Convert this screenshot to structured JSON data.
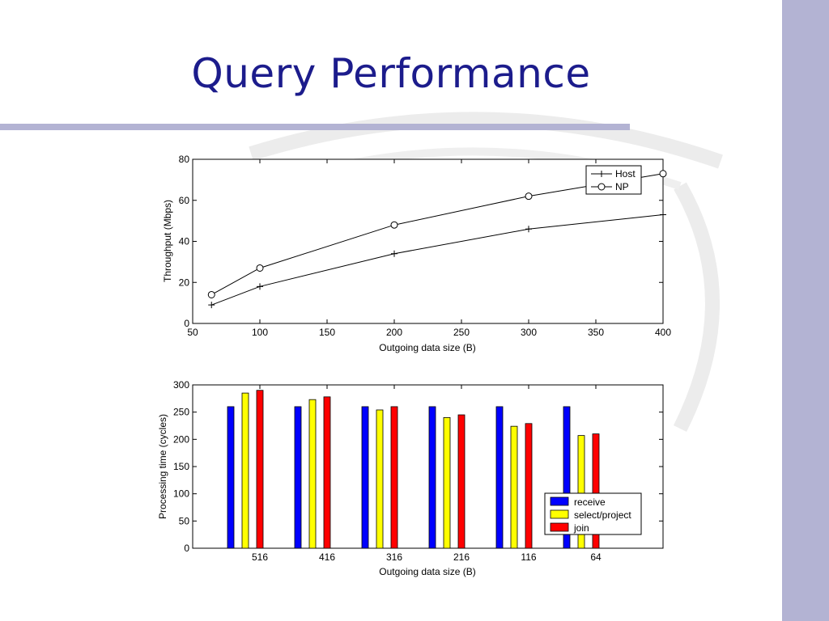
{
  "slide": {
    "title": "Query Performance",
    "accent_color": "#1c1c8c",
    "band_color": "#b3b3d3"
  },
  "chart_data": [
    {
      "type": "line",
      "xlabel": "Outgoing data size (B)",
      "ylabel": "Throughput (Mbps)",
      "xlim": [
        50,
        400
      ],
      "ylim": [
        0,
        80
      ],
      "xticks": [
        50,
        100,
        150,
        200,
        250,
        300,
        350,
        400
      ],
      "yticks": [
        0,
        20,
        40,
        60,
        80
      ],
      "grid": false,
      "legend_position": "top-right",
      "series": [
        {
          "name": "Host",
          "marker": "plus",
          "x": [
            64,
            100,
            200,
            300,
            400
          ],
          "y": [
            9,
            18,
            34,
            46,
            53
          ]
        },
        {
          "name": "NP",
          "marker": "circle",
          "x": [
            64,
            100,
            200,
            300,
            400
          ],
          "y": [
            14,
            27,
            48,
            62,
            73
          ]
        }
      ]
    },
    {
      "type": "bar",
      "xlabel": "Outgoing data size (B)",
      "ylabel": "Processing time (cycles)",
      "ylim": [
        0,
        300
      ],
      "yticks": [
        0,
        50,
        100,
        150,
        200,
        250,
        300
      ],
      "grid": false,
      "legend_position": "bottom-right",
      "categories": [
        "516",
        "416",
        "316",
        "216",
        "116",
        "64"
      ],
      "series": [
        {
          "name": "receive",
          "color": "#0000ff",
          "values": [
            260,
            260,
            260,
            260,
            260,
            260
          ]
        },
        {
          "name": "select/project",
          "color": "#ffff00",
          "values": [
            285,
            273,
            254,
            240,
            224,
            207
          ]
        },
        {
          "name": "join",
          "color": "#ff0000",
          "values": [
            290,
            278,
            260,
            245,
            229,
            210
          ]
        }
      ]
    }
  ]
}
